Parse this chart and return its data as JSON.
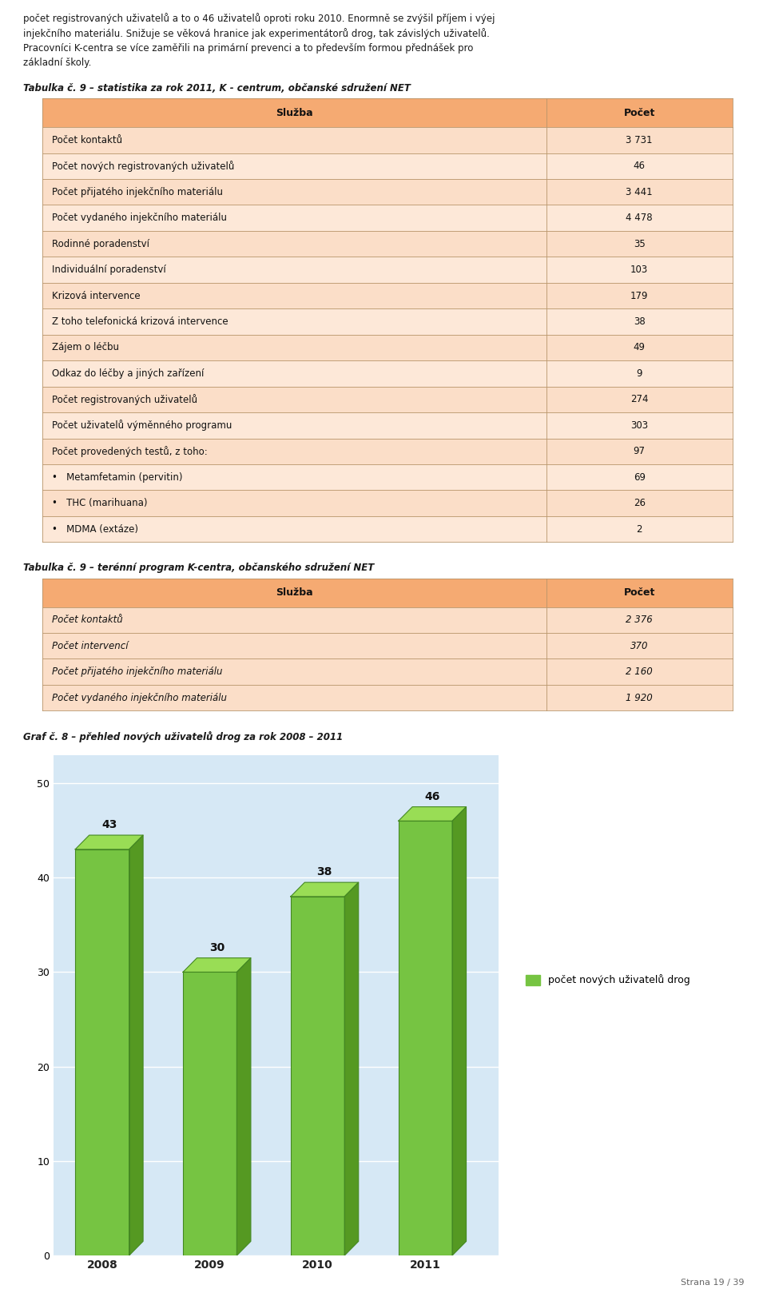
{
  "table1_caption": "Tabulka č. 9 – statistika za rok 2011, K - centrum, občanské sdružení NET",
  "table1_header": [
    "Služba",
    "Počet"
  ],
  "table1_header_bg": "#F5AA72",
  "table1_row_bg_a": "#FBDEC8",
  "table1_row_bg_b": "#FDE8D8",
  "table1_border_color": "#B8956A",
  "table1_rows": [
    [
      "Počet kontaktů",
      "3 731"
    ],
    [
      "Počet nových registrovaných uživatelů",
      "46"
    ],
    [
      "Počet přijatého injekčního materiálu",
      "3 441"
    ],
    [
      "Počet vydaného injekčního materiálu",
      "4 478"
    ],
    [
      "Rodinné poradenství",
      "35"
    ],
    [
      "Individuální poradenství",
      "103"
    ],
    [
      "Krizová intervence",
      "179"
    ],
    [
      "Z toho telefonická krizová intervence",
      "38"
    ],
    [
      "Zájem o léčbu",
      "49"
    ],
    [
      "Odkaz do léčby a jiných zařízení",
      "9"
    ],
    [
      "Počet registrovaných uživatelů",
      "274"
    ],
    [
      "Počet uživatelů výměnného programu",
      "303"
    ],
    [
      "Počet provedených testů, z toho:",
      "97"
    ],
    [
      "•   Metamfetamin (pervitin)",
      "69"
    ],
    [
      "•   THC (marihuana)",
      "26"
    ],
    [
      "•   MDMA (extáze)",
      "2"
    ]
  ],
  "table2_caption": "Tabulka č. 9 – terénní program K-centra, občanského sdružení NET",
  "table2_header": [
    "Služba",
    "Počet"
  ],
  "table2_header_bg": "#F5AA72",
  "table2_row_bg": "#FBDEC8",
  "table2_border_color": "#B8956A",
  "table2_rows": [
    [
      "Počet kontaktů",
      "2 376"
    ],
    [
      "Počet intervencí",
      "370"
    ],
    [
      "Počet přijatého injekčního materiálu",
      "2 160"
    ],
    [
      "Počet vydaného injekčního materiálu",
      "1 920"
    ]
  ],
  "chart_caption": "Graf č. 8 – přehled nových uživatelů drog za rok 2008 – 2011",
  "chart_years": [
    "2008",
    "2009",
    "2010",
    "2011"
  ],
  "chart_values": [
    43,
    30,
    38,
    46
  ],
  "chart_bar_color": "#76C442",
  "chart_bar_right": "#559922",
  "chart_bar_top": "#99DD55",
  "chart_bg": "#D6E8F5",
  "chart_legend_label": "počet nových uživatelů drog",
  "chart_yticks": [
    0,
    10,
    20,
    30,
    40,
    50
  ],
  "page_label": "Strana 19 / 39",
  "text_color": "#1A1A1A",
  "intro_lines": [
    "počet registrovaných uživatelů a to o 46 uživatelů oproti roku 2010. Enormně se zvýšil příjem i výej",
    "injekčního materiálu. Snižuje se věková hranice jak experimentátorů drog, tak závislých uživatelů.",
    "Pracovníci K-centra se více zaměřili na primární prevenci a to především formou přednášek pro",
    "základní školy."
  ]
}
